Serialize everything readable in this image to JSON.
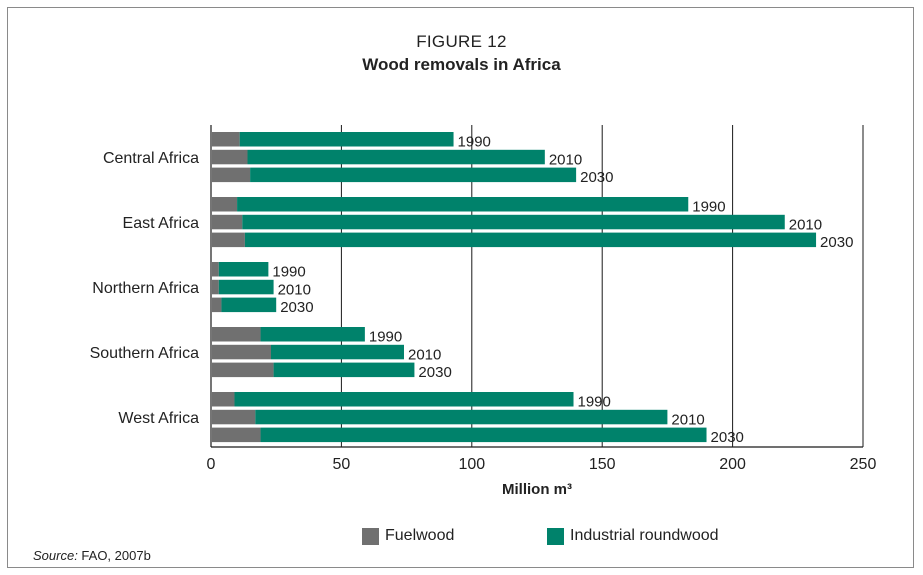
{
  "figure_number": "FIGURE 12",
  "figure_title": "Wood removals in Africa",
  "source_label": "Source:",
  "source_text": " FAO, 2007b",
  "colors": {
    "fuelwood": "#707070",
    "industrial": "#00826b",
    "grid": "#1a1a1a"
  },
  "chart_data": {
    "type": "bar",
    "orientation": "horizontal",
    "stacked": true,
    "title": "Wood removals in Africa",
    "xlabel": "Million m³",
    "ylabel": "",
    "xlim": [
      0,
      250
    ],
    "xticks": [
      0,
      50,
      100,
      150,
      200,
      250
    ],
    "grid": true,
    "legend_position": "bottom",
    "regions": [
      "Central Africa",
      "East Africa",
      "Northern Africa",
      "Southern Africa",
      "West Africa"
    ],
    "years": [
      "1990",
      "2010",
      "2030"
    ],
    "series": [
      {
        "name": "Fuelwood",
        "values": [
          11,
          14,
          15,
          10,
          12,
          13,
          3,
          3,
          4,
          19,
          23,
          24,
          9,
          17,
          19
        ]
      },
      {
        "name": "Industrial roundwood",
        "values": [
          82,
          114,
          125,
          173,
          208,
          219,
          19,
          21,
          21,
          40,
          51,
          54,
          130,
          158,
          171
        ]
      }
    ]
  }
}
